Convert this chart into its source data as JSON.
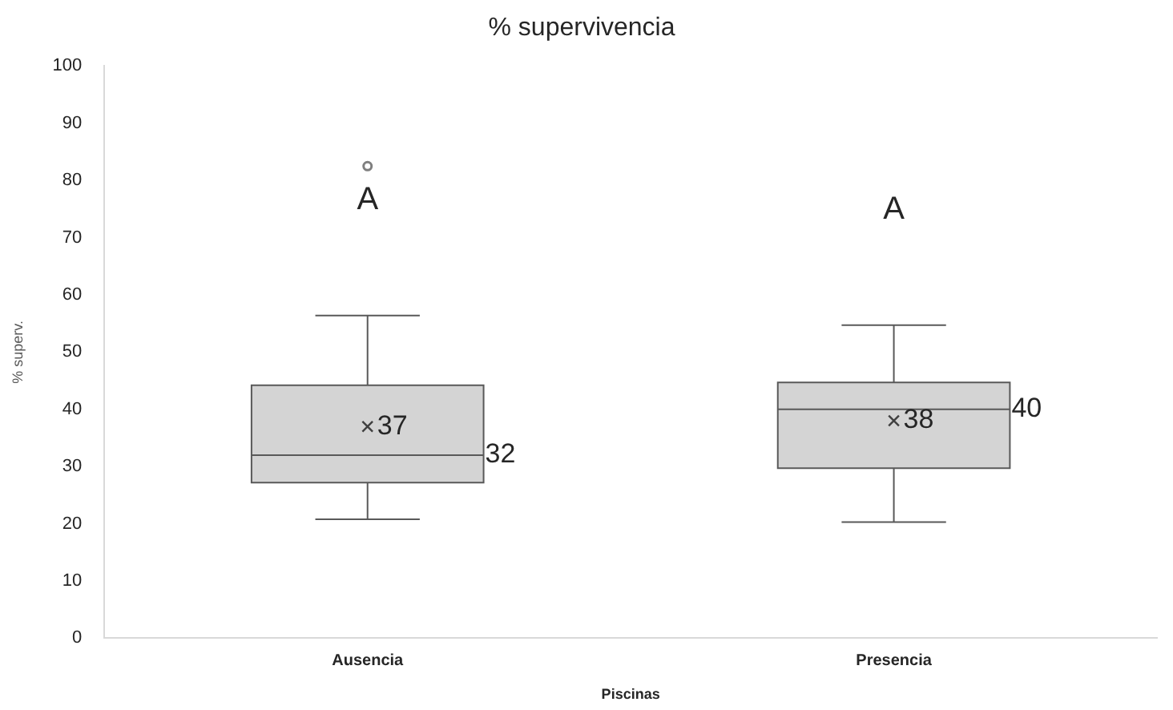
{
  "chart_data": {
    "type": "box",
    "title": "% supervivencia",
    "xlabel": "Piscinas",
    "ylabel": "% superv.",
    "categories": [
      "Ausencia",
      "Presencia"
    ],
    "boxes": [
      {
        "low": 20.8,
        "q1": 27.2,
        "median": 32,
        "q3": 44.2,
        "high": 56.4,
        "mean": 37,
        "outliers": [
          82.5
        ]
      },
      {
        "low": 20.3,
        "q1": 29.7,
        "median": 40,
        "q3": 44.7,
        "high": 54.7,
        "mean": 38
      }
    ],
    "color": "#d4d4d4",
    "ylim": [
      0,
      100
    ],
    "yticks": [
      0,
      10,
      20,
      30,
      40,
      50,
      60,
      70,
      80,
      90,
      100
    ],
    "grid": false,
    "legend": false,
    "marker": "cross",
    "annotations": [
      "A",
      "32",
      "37",
      "A",
      "40",
      "38"
    ]
  }
}
